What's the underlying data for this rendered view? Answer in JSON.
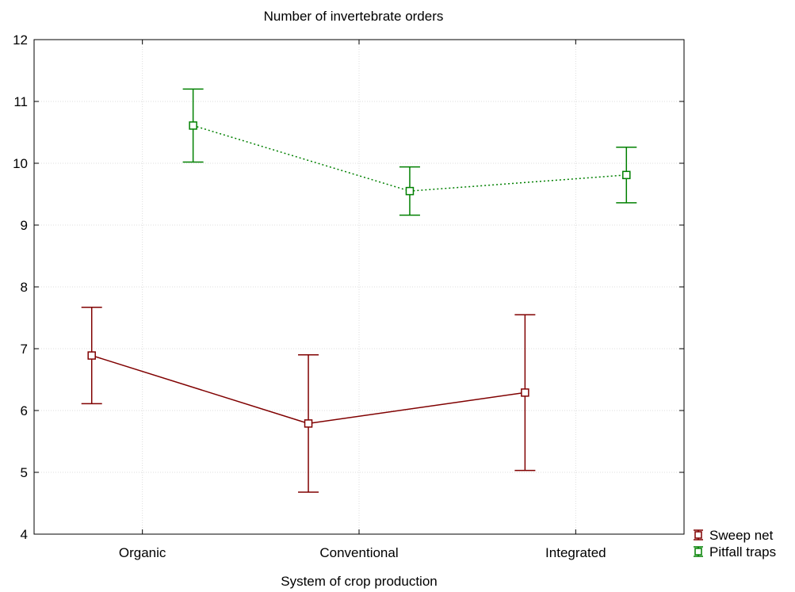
{
  "chart_data": {
    "type": "line",
    "title": "Number of invertebrate orders",
    "xlabel": "System of crop production",
    "ylabel": "",
    "categories": [
      "Organic",
      "Conventional",
      "Integrated"
    ],
    "ylim": [
      4,
      12
    ],
    "yticks": [
      4,
      5,
      6,
      7,
      8,
      9,
      10,
      11,
      12
    ],
    "grid": true,
    "legend_position": "bottom-right outside",
    "series": [
      {
        "name": "Sweep net",
        "color": "#800000",
        "line_style": "solid",
        "marker": "square",
        "values": [
          6.89,
          5.79,
          6.29
        ],
        "error_low": [
          6.11,
          4.68,
          5.03
        ],
        "error_high": [
          7.67,
          6.9,
          7.55
        ]
      },
      {
        "name": "Pitfall traps",
        "color": "#008000",
        "line_style": "dotted",
        "marker": "square",
        "values": [
          10.61,
          9.55,
          9.81
        ],
        "error_low": [
          10.02,
          9.16,
          9.36
        ],
        "error_high": [
          11.2,
          9.94,
          10.26
        ]
      }
    ]
  }
}
